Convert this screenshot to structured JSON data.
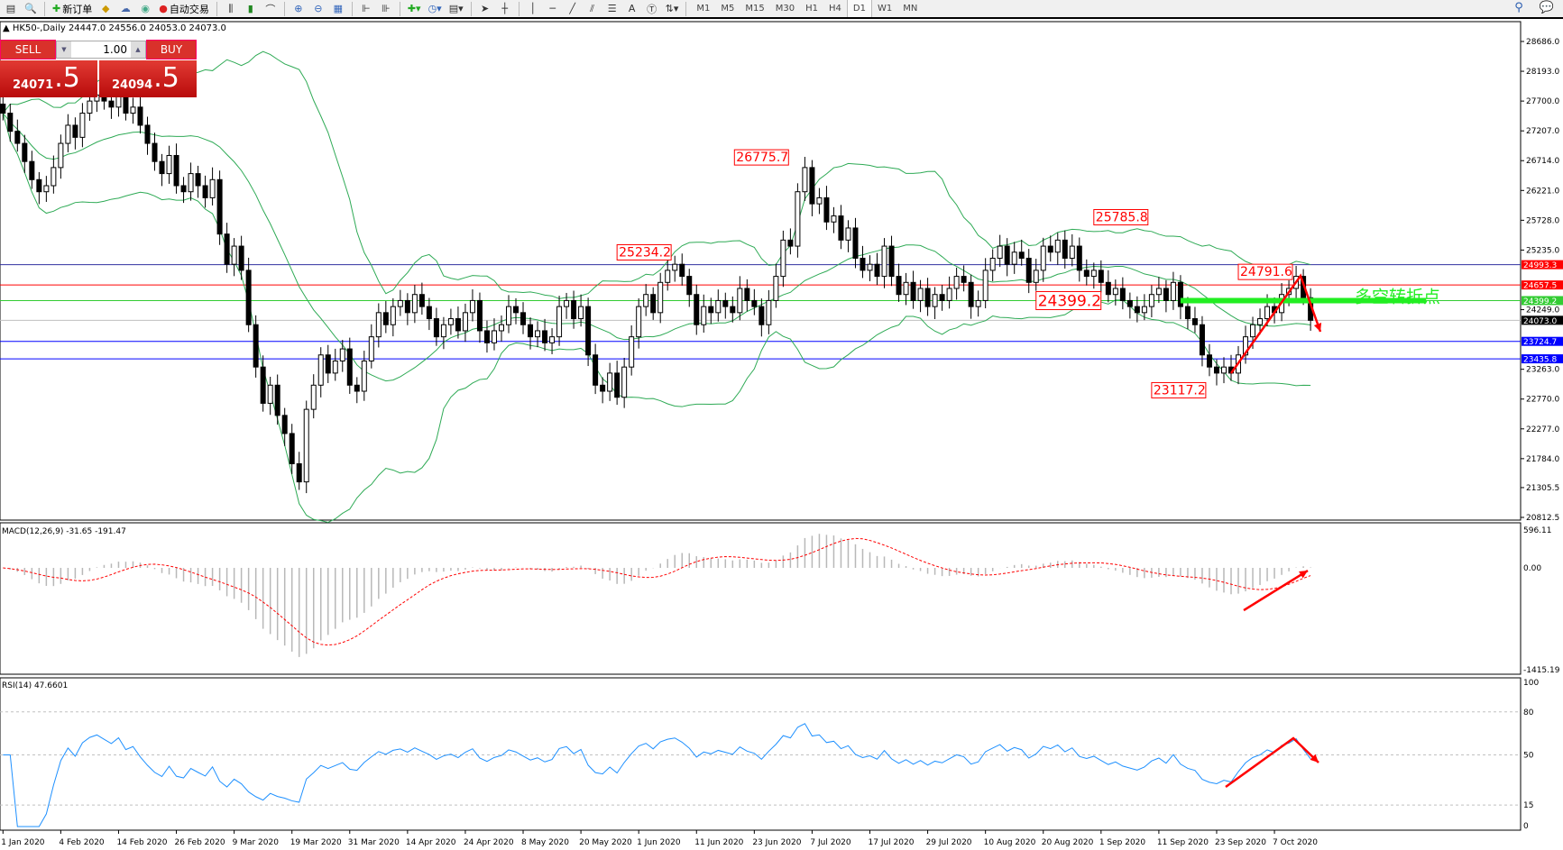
{
  "toolbar": {
    "new_order": "新订单",
    "auto_trading": "自动交易",
    "timeframes": [
      "M1",
      "M5",
      "M15",
      "M30",
      "H1",
      "H4",
      "D1",
      "W1",
      "MN"
    ],
    "active_timeframe": "D1",
    "text_tool": "A"
  },
  "chart": {
    "title": "HK50-,Daily  24447.0 24556.0 24053.0 24073.0",
    "symbol": "HK50-",
    "period": "Daily",
    "ohlc": {
      "open": 24447.0,
      "high": 24556.0,
      "low": 24053.0,
      "close": 24073.0
    }
  },
  "trade_panel": {
    "sell_label": "SELL",
    "buy_label": "BUY",
    "lot": "1.00",
    "sell_main": "24071",
    "sell_pip": ".5",
    "buy_main": "24094",
    "buy_pip": ".5"
  },
  "chart_data": {
    "type": "candlestick",
    "closes": [
      27500,
      27200,
      27000,
      26700,
      26400,
      26200,
      26300,
      26600,
      27000,
      27300,
      27100,
      27500,
      27700,
      27800,
      27700,
      27600,
      27800,
      27500,
      27600,
      27300,
      27000,
      26700,
      26500,
      26800,
      26300,
      26200,
      26500,
      26300,
      26100,
      26400,
      25500,
      25000,
      25300,
      24900,
      24000,
      23300,
      22700,
      23000,
      22500,
      22200,
      21700,
      21400,
      22600,
      23000,
      23500,
      23200,
      23400,
      23600,
      23000,
      22900,
      23400,
      23800,
      24200,
      24000,
      24300,
      24400,
      24200,
      24500,
      24300,
      24100,
      23800,
      24000,
      24100,
      23900,
      24200,
      24400,
      23900,
      23700,
      23900,
      24000,
      24300,
      24200,
      24000,
      23800,
      23900,
      23700,
      23800,
      24300,
      24400,
      24100,
      24300,
      23500,
      23000,
      22900,
      23200,
      22800,
      23300,
      23800,
      24300,
      24500,
      24200,
      24700,
      24900,
      25000,
      24800,
      24500,
      24000,
      24300,
      24200,
      24400,
      24300,
      24200,
      24600,
      24400,
      24300,
      24000,
      24400,
      24800,
      25400,
      25300,
      26200,
      26600,
      26000,
      26100,
      25700,
      25800,
      25400,
      25600,
      25100,
      24900,
      25000,
      24800,
      25300,
      24800,
      24500,
      24700,
      24400,
      24600,
      24300,
      24500,
      24400,
      24600,
      24800,
      24700,
      24300,
      24400,
      24900,
      25100,
      25300,
      25000,
      25200,
      25100,
      24700,
      24900,
      25300,
      25200,
      25400,
      25100,
      25300,
      24900,
      24800,
      24900,
      24700,
      24500,
      24600,
      24400,
      24300,
      24200,
      24300,
      24500,
      24600,
      24400,
      24700,
      24300,
      24100,
      24000,
      23500,
      23300,
      23200,
      23300,
      23200,
      23500,
      23800,
      24000,
      24100,
      24300,
      24200,
      24500,
      24600,
      24800,
      24447,
      24073
    ],
    "price_axis": {
      "min": 20812.5,
      "max": 28686.0,
      "ticks": [
        "28686.0",
        "28193.0",
        "27700.0",
        "27207.0",
        "26714.0",
        "26221.0",
        "25728.0",
        "25235.0",
        "24249.0",
        "23263.0",
        "22770.0",
        "22277.0",
        "21784.0",
        "21305.5",
        "20812.5"
      ]
    },
    "date_labels": [
      "1 Jan 2020",
      "4 Feb 2020",
      "14 Feb 2020",
      "26 Feb 2020",
      "9 Mar 2020",
      "19 Mar 2020",
      "31 Mar 2020",
      "14 Apr 2020",
      "24 Apr 2020",
      "8 May 2020",
      "20 May 2020",
      "1 Jun 2020",
      "11 Jun 2020",
      "23 Jun 2020",
      "7 Jul 2020",
      "17 Jul 2020",
      "29 Jul 2020",
      "10 Aug 2020",
      "20 Aug 2020",
      "1 Sep 2020",
      "11 Sep 2020",
      "23 Sep 2020",
      "7 Oct 2020"
    ],
    "indicators": {
      "bollinger": "20,2",
      "bollinger_color": "#2eaa55"
    },
    "hlines": [
      {
        "price": "24993.3",
        "color": "#ff0000",
        "line": "#3030a0"
      },
      {
        "price": "24657.5",
        "color": "#ff0000",
        "line": "#ff0000"
      },
      {
        "price": "24399.2",
        "color": "#33cc33",
        "line": "#33cc33"
      },
      {
        "price": "24073.0",
        "color": "#000000",
        "line": "#c0c0c0"
      },
      {
        "price": "23724.7",
        "color": "#0000ff",
        "line": "#0000ff"
      },
      {
        "price": "23435.8",
        "color": "#0000ff",
        "line": "#0000ff"
      }
    ],
    "annotations": [
      {
        "text": "26775.7",
        "bar": 111,
        "price": 26775.7
      },
      {
        "text": "25234.2",
        "bar": 85,
        "price": 25234.2
      },
      {
        "text": "25785.8",
        "bar": 151,
        "price": 25785.8
      },
      {
        "text": "24399.2",
        "bar": 144,
        "price": 24399.2
      },
      {
        "text": "23117.2",
        "bar": 159,
        "price": 23117.2
      },
      {
        "text": "24791.6",
        "bar": 171,
        "price": 24791.6
      }
    ],
    "pivot_label": "多空转折点",
    "pivot_price": 24399.2,
    "macd": {
      "label": "MACD(12,26,9) -31.65 -191.47",
      "max": "596.11",
      "zero": "0.00",
      "min": "-1415.19"
    },
    "rsi": {
      "label": "RSI(14) 47.6601",
      "levels": [
        "100",
        "80",
        "50",
        "15",
        "0"
      ]
    }
  }
}
